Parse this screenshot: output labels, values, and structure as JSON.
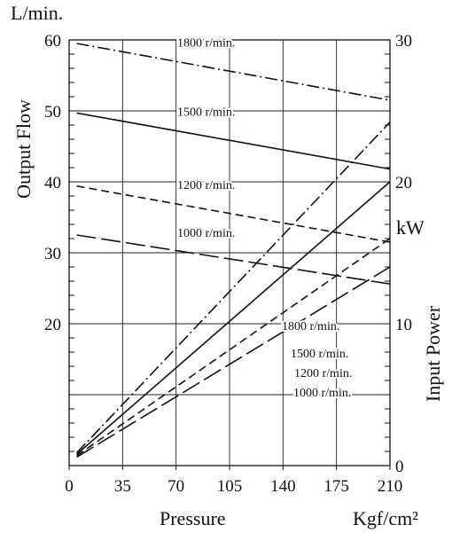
{
  "chart_data": {
    "type": "line",
    "title": "",
    "xlabel": "Pressure",
    "xunit": "Kgf/cm²",
    "xlim": [
      0,
      210
    ],
    "x_ticks": [
      0,
      35,
      70,
      105,
      140,
      175,
      210
    ],
    "left_axis": {
      "unit": "L/min.",
      "label": "Output Flow",
      "ylim": [
        0,
        60
      ],
      "ticks": [
        20,
        30,
        40,
        50,
        60
      ]
    },
    "right_axis": {
      "unit": "kW",
      "label": "Input Power",
      "ylim": [
        0,
        30
      ],
      "ticks": [
        0,
        10,
        20,
        30
      ]
    },
    "grid": true,
    "flow_series": [
      {
        "name": "1800 r/min.",
        "axis": "left",
        "style": "dashdot",
        "x": [
          5,
          210
        ],
        "y": [
          59.5,
          51.5
        ]
      },
      {
        "name": "1500 r/min.",
        "axis": "left",
        "style": "solid",
        "x": [
          5,
          210
        ],
        "y": [
          49.7,
          41.8
        ]
      },
      {
        "name": "1200 r/min.",
        "axis": "left",
        "style": "dashed",
        "x": [
          5,
          210
        ],
        "y": [
          39.4,
          31.5
        ]
      },
      {
        "name": "1000 r/min.",
        "axis": "left",
        "style": "longdash",
        "x": [
          5,
          210
        ],
        "y": [
          32.5,
          25.6
        ]
      }
    ],
    "power_series": [
      {
        "name": "1800 r/min.",
        "axis": "right",
        "style": "dashdot",
        "x": [
          5,
          210
        ],
        "y": [
          0.9,
          24.2
        ]
      },
      {
        "name": "1500 r/min.",
        "axis": "right",
        "style": "solid",
        "x": [
          5,
          210
        ],
        "y": [
          0.8,
          20.0
        ]
      },
      {
        "name": "1200 r/min.",
        "axis": "right",
        "style": "dashed",
        "x": [
          5,
          210
        ],
        "y": [
          0.7,
          16.0
        ]
      },
      {
        "name": "1000 r/min.",
        "axis": "right",
        "style": "longdash",
        "x": [
          5,
          210
        ],
        "y": [
          0.6,
          14.0
        ]
      }
    ]
  }
}
